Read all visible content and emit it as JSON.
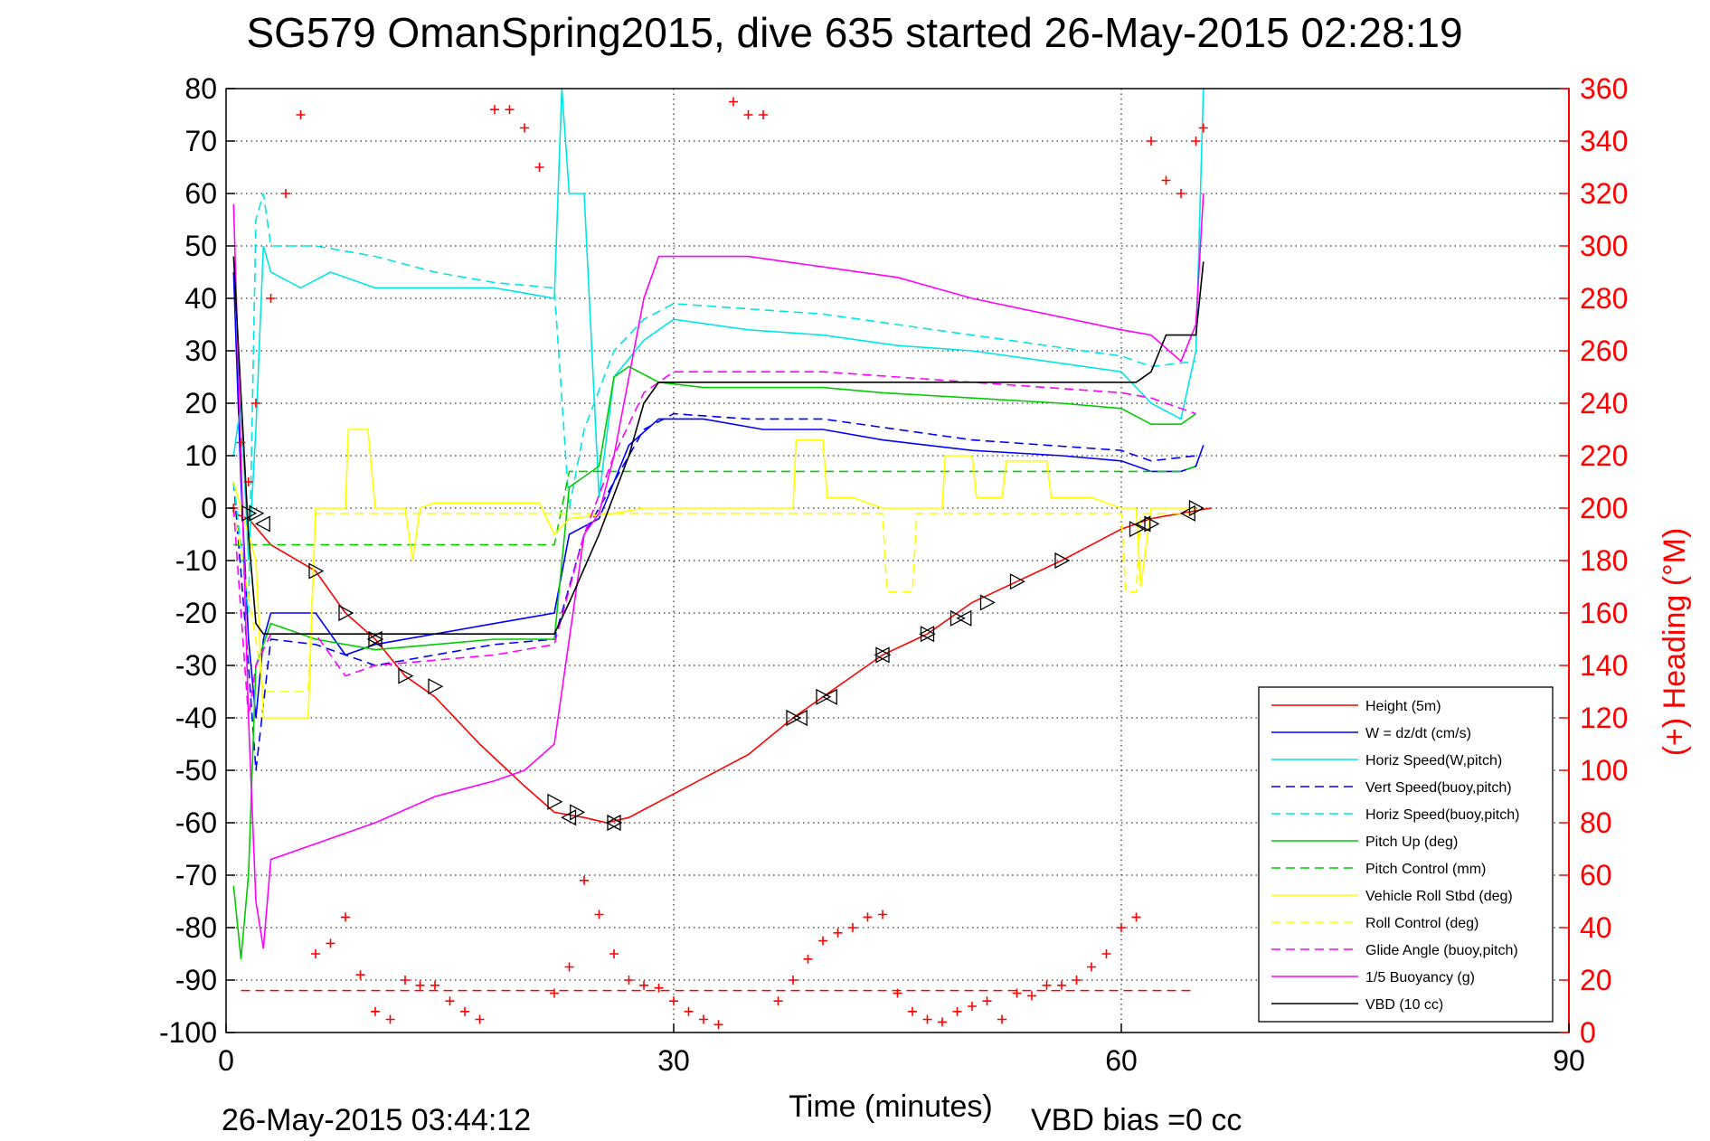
{
  "title": "SG579 OmanSpring2015, dive 635 started 26-May-2015 02:28:19",
  "footer": {
    "timestamp": "26-May-2015 03:44:12",
    "vbd_bias": "VBD bias =0 cc"
  },
  "chart_data": {
    "type": "line",
    "title": "SG579 OmanSpring2015, dive 635 started 26-May-2015 02:28:19",
    "xlabel": "Time (minutes)",
    "ylabel": "",
    "y2label": "(+) Heading (°M)",
    "xlim": [
      0,
      90
    ],
    "ylim": [
      -100,
      80
    ],
    "y2lim": [
      0,
      360
    ],
    "xticks": [
      "0",
      "30",
      "60",
      "90"
    ],
    "yticks": [
      "80",
      "70",
      "60",
      "50",
      "40",
      "30",
      "20",
      "10",
      "0",
      "-10",
      "-20",
      "-30",
      "-40",
      "-50",
      "-60",
      "-70",
      "-80",
      "-90",
      "-100"
    ],
    "y2ticks": [
      "360",
      "340",
      "320",
      "300",
      "280",
      "260",
      "240",
      "220",
      "200",
      "180",
      "160",
      "140",
      "120",
      "100",
      "80",
      "60",
      "40",
      "20",
      "0"
    ],
    "grid": true,
    "legend_position": "bottom-right",
    "series": [
      {
        "name": "Height (5m)",
        "color": "#ff0000",
        "style": "solid",
        "x": [
          0.5,
          1.5,
          3,
          6,
          8,
          10,
          12,
          14,
          17,
          20,
          22,
          24,
          25.5,
          27,
          29,
          31,
          35,
          38,
          40,
          44,
          47,
          50,
          53,
          56,
          58,
          60,
          62,
          64,
          66
        ],
        "y": [
          -1,
          -2,
          -7,
          -12,
          -20,
          -25,
          -32,
          -36,
          -45,
          -53,
          -58,
          -59,
          -60,
          -59,
          -56,
          -53,
          -47,
          -40,
          -36,
          -28,
          -24,
          -18,
          -14,
          -10,
          -7,
          -4,
          -2,
          -1,
          0
        ]
      },
      {
        "name": "W = dz/dt (cm/s)",
        "color": "#0000ff",
        "style": "solid",
        "x": [
          0.5,
          1,
          1.5,
          2,
          2.5,
          3,
          6,
          8,
          10,
          14,
          18,
          20,
          22,
          23,
          25,
          27,
          29,
          32,
          36,
          40,
          44,
          50,
          56,
          60,
          62,
          64,
          65,
          65.5
        ],
        "y": [
          45,
          5,
          -25,
          -40,
          -25,
          -20,
          -20,
          -28,
          -26,
          -24,
          -22,
          -21,
          -20,
          -5,
          -2,
          12,
          17,
          17,
          15,
          15,
          13,
          11,
          10,
          9,
          7,
          7,
          8,
          12
        ]
      },
      {
        "name": "Horiz Speed(W,pitch)",
        "color": "#00e5e5",
        "style": "solid",
        "x": [
          0.5,
          1,
          1.5,
          2,
          2.5,
          3,
          5,
          7,
          10,
          14,
          18,
          20,
          22,
          22.5,
          23,
          24,
          25,
          26,
          28,
          30,
          35,
          40,
          45,
          50,
          55,
          60,
          62,
          64,
          65,
          65.5
        ],
        "y": [
          10,
          20,
          -10,
          15,
          50,
          45,
          42,
          45,
          42,
          42,
          42,
          41,
          40,
          80,
          60,
          60,
          2,
          25,
          32,
          36,
          34,
          33,
          31,
          30,
          28,
          26,
          20,
          17,
          30,
          80
        ]
      },
      {
        "name": "Vert Speed(buoy,pitch)",
        "color": "#0000ff",
        "style": "dashed",
        "x": [
          0.5,
          1.5,
          2,
          3,
          6,
          10,
          14,
          18,
          22,
          24,
          26,
          28,
          30,
          35,
          40,
          45,
          50,
          55,
          60,
          62,
          65
        ],
        "y": [
          5,
          -30,
          -50,
          -25,
          -26,
          -30,
          -28,
          -26,
          -25,
          -5,
          5,
          15,
          18,
          17,
          17,
          15,
          13,
          12,
          11,
          9,
          10
        ]
      },
      {
        "name": "Horiz Speed(buoy,pitch)",
        "color": "#00e5e5",
        "style": "dashed",
        "x": [
          0.5,
          1.5,
          2,
          2.5,
          3,
          6,
          10,
          14,
          18,
          22,
          23,
          24,
          26,
          28,
          30,
          35,
          40,
          45,
          50,
          55,
          60,
          62,
          65
        ],
        "y": [
          5,
          -20,
          55,
          60,
          50,
          50,
          48,
          45,
          43,
          42,
          0,
          15,
          30,
          36,
          39,
          38,
          37,
          35,
          33,
          31,
          29,
          27,
          28
        ]
      },
      {
        "name": "Pitch Up (deg)",
        "color": "#00cc00",
        "style": "solid",
        "x": [
          0.5,
          1,
          1.5,
          2,
          3,
          6,
          10,
          14,
          18,
          22,
          23,
          25,
          26,
          27,
          29,
          32,
          36,
          40,
          44,
          50,
          56,
          60,
          62,
          64,
          65
        ],
        "y": [
          -72,
          -86,
          -70,
          -30,
          -22,
          -25,
          -27,
          -26,
          -25,
          -25,
          4,
          8,
          25,
          27,
          24,
          23,
          23,
          23,
          22,
          21,
          20,
          19,
          16,
          16,
          18
        ]
      },
      {
        "name": "Pitch Control (mm)",
        "color": "#00cc00",
        "style": "dashed",
        "x": [
          0.5,
          22,
          23,
          26,
          30,
          40,
          50,
          60,
          64,
          65
        ],
        "y": [
          -7,
          -7,
          7,
          7,
          7,
          7,
          7,
          7,
          7,
          8
        ]
      },
      {
        "name": "Vehicle Roll Stbd (deg)",
        "color": "#ffff00",
        "style": "solid",
        "x": [
          0.5,
          2,
          2.5,
          5.5,
          6,
          8,
          8.2,
          9.5,
          10,
          12,
          12.5,
          13,
          14,
          18,
          21,
          22,
          23,
          26,
          28,
          30,
          38,
          38.2,
          40,
          40.3,
          42,
          44,
          46,
          48,
          48.2,
          50,
          50.3,
          52,
          52.3,
          55,
          55.3,
          58,
          60,
          61,
          61.3,
          62,
          64,
          65
        ],
        "y": [
          5,
          -10,
          -40,
          -40,
          0,
          0,
          15,
          15,
          0,
          0,
          -10,
          0,
          1,
          1,
          1,
          -5,
          -2,
          -1,
          0,
          0,
          0,
          13,
          13,
          2,
          2,
          0,
          0,
          0,
          10,
          10,
          2,
          2,
          9,
          9,
          2,
          2,
          0,
          0,
          -15,
          0,
          0,
          0
        ]
      },
      {
        "name": "Roll Control (deg)",
        "color": "#ffff00",
        "style": "dashed",
        "x": [
          0.5,
          2,
          2.5,
          5.5,
          6,
          22,
          38,
          40,
          43,
          44,
          44.3,
          46,
          46.3,
          60,
          60.3,
          61,
          61.3,
          62,
          65
        ],
        "y": [
          0,
          -25,
          -35,
          -35,
          -1,
          -1,
          -1,
          -1,
          -1,
          -1,
          -16,
          -16,
          -1,
          -1,
          -16,
          -16,
          -1,
          -1,
          -1
        ]
      },
      {
        "name": "Glide Angle (buoy,pitch)",
        "color": "#ff00ff",
        "style": "dashed",
        "x": [
          0.5,
          1.5,
          2,
          3,
          6,
          8,
          10,
          14,
          18,
          22,
          24,
          26,
          28,
          30,
          35,
          40,
          45,
          50,
          55,
          60,
          62,
          65
        ],
        "y": [
          0,
          -40,
          -30,
          -24,
          -24,
          -32,
          -30,
          -29,
          -28,
          -26,
          -5,
          10,
          22,
          26,
          26,
          26,
          25,
          24,
          23,
          22,
          21,
          18
        ]
      },
      {
        "name": "1/5 Buoyancy (g)",
        "color": "#ff00ff",
        "style": "solid",
        "x": [
          0.5,
          1,
          1.5,
          2,
          2.5,
          3,
          6,
          10,
          14,
          18,
          20,
          22,
          23,
          24,
          25,
          26,
          27,
          28,
          29,
          30,
          33,
          35,
          40,
          45,
          50,
          55,
          60,
          62,
          64,
          65,
          65.5
        ],
        "y": [
          58,
          10,
          -40,
          -75,
          -84,
          -67,
          -64,
          -60,
          -55,
          -52,
          -50,
          -45,
          -25,
          -5,
          -1,
          10,
          25,
          40,
          48,
          48,
          48,
          48,
          46,
          44,
          40,
          37,
          34,
          33,
          28,
          35,
          60
        ]
      },
      {
        "name": "VBD (10 cc)",
        "color": "#000000",
        "style": "solid",
        "x": [
          0.5,
          1.5,
          2,
          2.5,
          22,
          23,
          25,
          27,
          28,
          29,
          61,
          62,
          63,
          65,
          65.5
        ],
        "y": [
          48,
          -5,
          -22,
          -24,
          -24,
          -18,
          -5,
          10,
          20,
          24,
          24,
          26,
          33,
          33,
          47
        ]
      }
    ],
    "heading": {
      "name": "(+) Heading",
      "color": "#ff0000",
      "marker": "+",
      "axis": "right",
      "x": [
        0.5,
        1,
        1.5,
        2,
        3,
        4,
        5,
        6,
        7,
        8,
        9,
        10,
        11,
        12,
        13,
        14,
        15,
        16,
        17,
        18,
        19,
        20,
        21,
        22,
        23,
        24,
        25,
        26,
        27,
        28,
        29,
        30,
        31,
        32,
        33,
        34,
        35,
        36,
        37,
        38,
        39,
        40,
        41,
        42,
        43,
        44,
        45,
        46,
        47,
        48,
        49,
        50,
        51,
        52,
        53,
        54,
        55,
        56,
        57,
        58,
        59,
        60,
        61,
        62,
        63,
        64,
        65,
        65.5
      ],
      "y": [
        200,
        225,
        210,
        240,
        280,
        320,
        350,
        30,
        34,
        44,
        22,
        8,
        5,
        20,
        18,
        18,
        12,
        8,
        5,
        352,
        352,
        345,
        330,
        15,
        25,
        58,
        45,
        30,
        20,
        18,
        17,
        12,
        8,
        5,
        3,
        355,
        350,
        350,
        12,
        20,
        28,
        35,
        38,
        40,
        44,
        45,
        15,
        8,
        5,
        4,
        8,
        10,
        12,
        5,
        15,
        14,
        18,
        18,
        20,
        25,
        30,
        40,
        44,
        340,
        325,
        320,
        340,
        345
      ]
    },
    "reference_line": {
      "name": "",
      "color": "#ff0000",
      "style": "dashed",
      "y": -92,
      "x": [
        1,
        65
      ]
    },
    "markers_right": {
      "color": "#000000",
      "x": [
        1.5,
        2,
        6,
        8,
        10,
        12,
        14,
        22,
        23.5,
        26,
        38,
        40,
        44,
        47,
        49,
        51,
        53,
        56,
        61,
        62,
        65
      ],
      "y": [
        -1,
        -1,
        -12,
        -20,
        -25,
        -32,
        -34,
        -56,
        -58,
        -60,
        -40,
        -36,
        -28,
        -24,
        -21,
        -18,
        -14,
        -10,
        -4,
        -3,
        0
      ]
    },
    "markers_left": {
      "color": "#000000",
      "x": [
        2.5,
        10,
        23,
        26,
        38.5,
        40.5,
        44,
        47,
        49.5,
        61.5,
        64.5
      ],
      "y": [
        -3,
        -25,
        -59,
        -60,
        -40,
        -36,
        -28,
        -24,
        -21,
        -3,
        -1
      ]
    }
  }
}
